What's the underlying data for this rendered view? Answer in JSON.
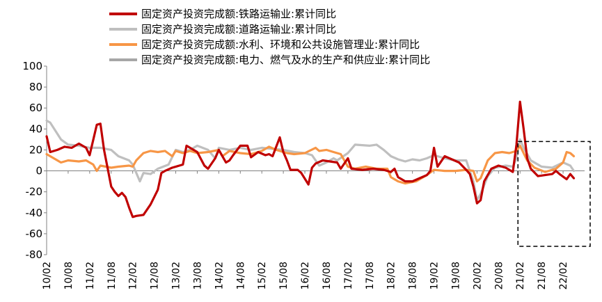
{
  "chart_data": {
    "type": "line",
    "title": "",
    "xlabel": "",
    "ylabel": "",
    "ylim": [
      -80,
      100
    ],
    "yticks": [
      100,
      80,
      60,
      40,
      20,
      0,
      -20,
      -40,
      -60,
      -80
    ],
    "x_tick_labels": [
      "10/02",
      "10/08",
      "11/02",
      "11/08",
      "12/02",
      "12/08",
      "13/02",
      "13/08",
      "14/02",
      "14/08",
      "15/02",
      "15/08",
      "16/02",
      "16/08",
      "17/02",
      "17/08",
      "18/02",
      "18/08",
      "19/02",
      "19/08",
      "20/02",
      "20/08",
      "21/02",
      "21/08",
      "22/02"
    ],
    "x_range": [
      "2010-02",
      "2022-08"
    ],
    "legend_position": "top-left",
    "grid": false,
    "series": [
      {
        "name": "固定资产投资完成额:铁路运输业:累计同比",
        "color": "#C00000",
        "points": [
          [
            "2010-02",
            33
          ],
          [
            "2010-03",
            18
          ],
          [
            "2010-05",
            20
          ],
          [
            "2010-07",
            23
          ],
          [
            "2010-09",
            22
          ],
          [
            "2010-11",
            26
          ],
          [
            "2011-01",
            22
          ],
          [
            "2011-02",
            15
          ],
          [
            "2011-04",
            44
          ],
          [
            "2011-05",
            45
          ],
          [
            "2011-06",
            20
          ],
          [
            "2011-08",
            -15
          ],
          [
            "2011-09",
            -20
          ],
          [
            "2011-10",
            -24
          ],
          [
            "2011-11",
            -21
          ],
          [
            "2011-12",
            -25
          ],
          [
            "2012-01",
            -35
          ],
          [
            "2012-02",
            -44
          ],
          [
            "2012-03",
            -43
          ],
          [
            "2012-05",
            -42
          ],
          [
            "2012-07",
            -32
          ],
          [
            "2012-09",
            -18
          ],
          [
            "2012-10",
            -2
          ],
          [
            "2012-11",
            0
          ],
          [
            "2013-01",
            3
          ],
          [
            "2013-03",
            5
          ],
          [
            "2013-04",
            6
          ],
          [
            "2013-05",
            24
          ],
          [
            "2013-06",
            22
          ],
          [
            "2013-08",
            18
          ],
          [
            "2013-10",
            5
          ],
          [
            "2013-11",
            2
          ],
          [
            "2014-01",
            12
          ],
          [
            "2014-02",
            20
          ],
          [
            "2014-04",
            8
          ],
          [
            "2014-05",
            10
          ],
          [
            "2014-06",
            15
          ],
          [
            "2014-08",
            24
          ],
          [
            "2014-10",
            24
          ],
          [
            "2014-11",
            13
          ],
          [
            "2015-01",
            18
          ],
          [
            "2015-03",
            15
          ],
          [
            "2015-04",
            16
          ],
          [
            "2015-05",
            14
          ],
          [
            "2015-07",
            32
          ],
          [
            "2015-08",
            18
          ],
          [
            "2015-09",
            10
          ],
          [
            "2015-10",
            1
          ],
          [
            "2015-12",
            1
          ],
          [
            "2016-01",
            -2
          ],
          [
            "2016-03",
            -13
          ],
          [
            "2016-04",
            3
          ],
          [
            "2016-05",
            7
          ],
          [
            "2016-07",
            10
          ],
          [
            "2016-09",
            9
          ],
          [
            "2016-11",
            8
          ],
          [
            "2016-12",
            2
          ],
          [
            "2017-02",
            12
          ],
          [
            "2017-03",
            2
          ],
          [
            "2017-06",
            1
          ],
          [
            "2017-09",
            2
          ],
          [
            "2017-12",
            1
          ],
          [
            "2018-02",
            -1
          ],
          [
            "2018-03",
            2
          ],
          [
            "2018-04",
            -6
          ],
          [
            "2018-06",
            -10
          ],
          [
            "2018-08",
            -10
          ],
          [
            "2018-10",
            -7
          ],
          [
            "2018-12",
            -4
          ],
          [
            "2019-01",
            0
          ],
          [
            "2019-02",
            22
          ],
          [
            "2019-03",
            4
          ],
          [
            "2019-05",
            14
          ],
          [
            "2019-07",
            11
          ],
          [
            "2019-09",
            8
          ],
          [
            "2019-11",
            1
          ],
          [
            "2019-12",
            -3
          ],
          [
            "2020-01",
            -15
          ],
          [
            "2020-02",
            -31
          ],
          [
            "2020-03",
            -28
          ],
          [
            "2020-04",
            -10
          ],
          [
            "2020-06",
            2
          ],
          [
            "2020-08",
            5
          ],
          [
            "2020-10",
            3
          ],
          [
            "2020-12",
            -1
          ],
          [
            "2021-01",
            25
          ],
          [
            "2021-02",
            66
          ],
          [
            "2021-03",
            40
          ],
          [
            "2021-04",
            12
          ],
          [
            "2021-05",
            2
          ],
          [
            "2021-07",
            -5
          ],
          [
            "2021-09",
            -4
          ],
          [
            "2021-11",
            -3
          ],
          [
            "2021-12",
            0
          ],
          [
            "2022-01",
            -3
          ],
          [
            "2022-03",
            -8
          ],
          [
            "2022-04",
            -3
          ],
          [
            "2022-05",
            -7
          ]
        ]
      },
      {
        "name": "固定资产投资完成额:道路运输业:累计同比",
        "color": "#BFBFBF",
        "points": [
          [
            "2010-02",
            48
          ],
          [
            "2010-03",
            46
          ],
          [
            "2010-06",
            30
          ],
          [
            "2010-08",
            25
          ],
          [
            "2010-11",
            24
          ],
          [
            "2011-02",
            22
          ],
          [
            "2011-05",
            22
          ],
          [
            "2011-08",
            20
          ],
          [
            "2011-10",
            14
          ],
          [
            "2012-01",
            10
          ],
          [
            "2012-02",
            6
          ],
          [
            "2012-04",
            -10
          ],
          [
            "2012-05",
            -2
          ],
          [
            "2012-07",
            -3
          ],
          [
            "2012-09",
            2
          ],
          [
            "2012-12",
            6
          ],
          [
            "2013-02",
            20
          ],
          [
            "2013-04",
            18
          ],
          [
            "2013-06",
            20
          ],
          [
            "2013-08",
            24
          ],
          [
            "2013-11",
            20
          ],
          [
            "2014-01",
            12
          ],
          [
            "2014-02",
            22
          ],
          [
            "2014-05",
            20
          ],
          [
            "2014-08",
            22
          ],
          [
            "2014-11",
            20
          ],
          [
            "2015-02",
            22
          ],
          [
            "2015-05",
            21
          ],
          [
            "2015-08",
            20
          ],
          [
            "2015-11",
            18
          ],
          [
            "2016-02",
            17
          ],
          [
            "2016-04",
            15
          ],
          [
            "2016-05",
            10
          ],
          [
            "2016-06",
            5
          ],
          [
            "2016-08",
            8
          ],
          [
            "2016-10",
            12
          ],
          [
            "2016-11",
            10
          ],
          [
            "2017-02",
            17
          ],
          [
            "2017-04",
            25
          ],
          [
            "2017-08",
            24
          ],
          [
            "2017-10",
            25
          ],
          [
            "2017-12",
            20
          ],
          [
            "2018-02",
            14
          ],
          [
            "2018-04",
            11
          ],
          [
            "2018-06",
            9
          ],
          [
            "2018-08",
            11
          ],
          [
            "2018-10",
            10
          ],
          [
            "2018-12",
            12
          ],
          [
            "2019-02",
            15
          ],
          [
            "2019-05",
            12
          ],
          [
            "2019-08",
            10
          ],
          [
            "2019-11",
            10
          ],
          [
            "2020-01",
            -10
          ],
          [
            "2020-02",
            -28
          ],
          [
            "2020-03",
            -22
          ],
          [
            "2020-05",
            -5
          ],
          [
            "2020-07",
            3
          ],
          [
            "2020-10",
            5
          ],
          [
            "2020-12",
            4
          ],
          [
            "2021-01",
            12
          ],
          [
            "2021-02",
            30
          ],
          [
            "2021-03",
            22
          ],
          [
            "2021-05",
            10
          ],
          [
            "2021-08",
            4
          ],
          [
            "2021-11",
            3
          ],
          [
            "2022-02",
            8
          ],
          [
            "2022-04",
            5
          ],
          [
            "2022-05",
            0
          ]
        ]
      },
      {
        "name": "固定资产投资完成额:水利、环境和公共设施管理业:累计同比",
        "color": "#F79646",
        "points": [
          [
            "2010-02",
            16
          ],
          [
            "2010-04",
            12
          ],
          [
            "2010-06",
            8
          ],
          [
            "2010-08",
            10
          ],
          [
            "2010-11",
            9
          ],
          [
            "2011-01",
            10
          ],
          [
            "2011-03",
            6
          ],
          [
            "2011-04",
            0
          ],
          [
            "2011-05",
            5
          ],
          [
            "2011-08",
            3
          ],
          [
            "2011-10",
            4
          ],
          [
            "2012-01",
            5
          ],
          [
            "2012-02",
            4
          ],
          [
            "2012-03",
            10
          ],
          [
            "2012-05",
            17
          ],
          [
            "2012-07",
            19
          ],
          [
            "2012-09",
            18
          ],
          [
            "2012-11",
            19
          ],
          [
            "2013-01",
            14
          ],
          [
            "2013-02",
            19
          ],
          [
            "2013-04",
            17
          ],
          [
            "2013-06",
            19
          ],
          [
            "2013-08",
            17
          ],
          [
            "2013-11",
            18
          ],
          [
            "2014-02",
            20
          ],
          [
            "2014-03",
            14
          ],
          [
            "2014-05",
            19
          ],
          [
            "2014-08",
            17
          ],
          [
            "2014-11",
            16
          ],
          [
            "2015-02",
            19
          ],
          [
            "2015-04",
            23
          ],
          [
            "2015-06",
            20
          ],
          [
            "2015-09",
            17
          ],
          [
            "2015-11",
            16
          ],
          [
            "2016-02",
            17
          ],
          [
            "2016-05",
            22
          ],
          [
            "2016-06",
            19
          ],
          [
            "2016-08",
            20
          ],
          [
            "2016-10",
            18
          ],
          [
            "2016-12",
            16
          ],
          [
            "2017-02",
            4
          ],
          [
            "2017-04",
            2
          ],
          [
            "2017-07",
            4
          ],
          [
            "2017-10",
            2
          ],
          [
            "2018-01",
            2
          ],
          [
            "2018-02",
            -6
          ],
          [
            "2018-04",
            -10
          ],
          [
            "2018-06",
            -12
          ],
          [
            "2018-09",
            -10
          ],
          [
            "2018-12",
            -4
          ],
          [
            "2019-02",
            1
          ],
          [
            "2019-05",
            0
          ],
          [
            "2019-08",
            0
          ],
          [
            "2019-11",
            1
          ],
          [
            "2020-01",
            0
          ],
          [
            "2020-02",
            -10
          ],
          [
            "2020-03",
            -7
          ],
          [
            "2020-05",
            10
          ],
          [
            "2020-07",
            17
          ],
          [
            "2020-09",
            18
          ],
          [
            "2020-11",
            17
          ],
          [
            "2021-01",
            19
          ],
          [
            "2021-02",
            24
          ],
          [
            "2021-04",
            10
          ],
          [
            "2021-06",
            3
          ],
          [
            "2021-09",
            -1
          ],
          [
            "2021-12",
            2
          ],
          [
            "2022-02",
            8
          ],
          [
            "2022-03",
            18
          ],
          [
            "2022-04",
            17
          ],
          [
            "2022-05",
            14
          ]
        ]
      },
      {
        "name": "固定资产投资完成额:电力、燃气及水的生产和供应业:累计同比",
        "color": "#A6A6A6",
        "points": [
          [
            "2010-02",
            null
          ]
        ]
      }
    ],
    "annotations": [
      {
        "type": "dashed-box",
        "x_from": "2021-02",
        "x_to": "2022-08",
        "y_from": -72,
        "y_to": 28
      }
    ]
  }
}
